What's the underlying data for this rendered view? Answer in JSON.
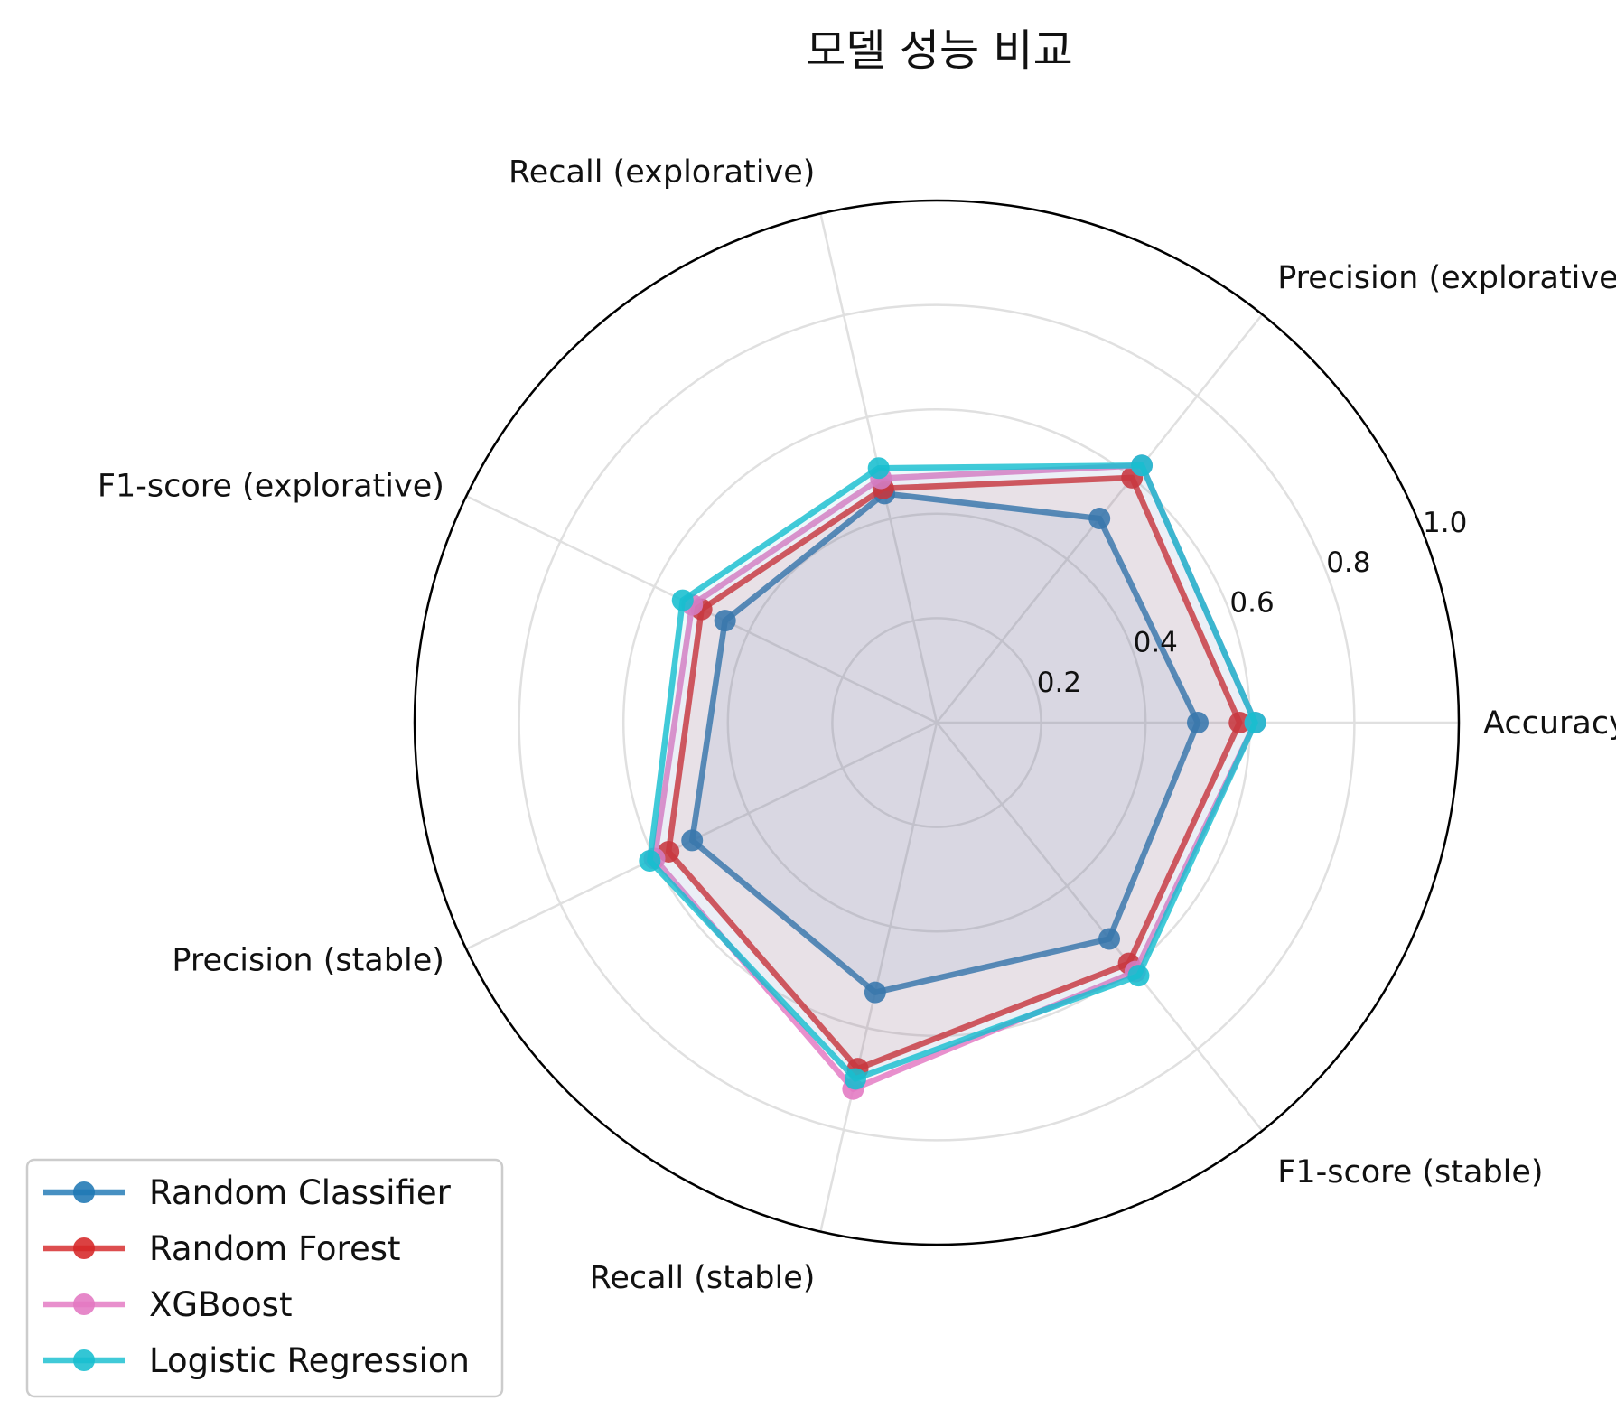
{
  "chart_data": {
    "type": "radar",
    "title": "모델 성능 비교",
    "axes": [
      "Accuracy",
      "Precision (explorative)",
      "Recall (explorative)",
      "F1-score (explorative)",
      "Precision (stable)",
      "Recall (stable)",
      "F1-score (stable)"
    ],
    "rlim": [
      0,
      1.0
    ],
    "rticks": [
      0.2,
      0.4,
      0.6,
      0.8,
      1.0
    ],
    "rtick_labels": [
      "0.2",
      "0.4",
      "0.6",
      "0.8",
      "1.0"
    ],
    "grid": true,
    "legend": "bottom-left",
    "series": [
      {
        "name": "Random Classifier",
        "color": "#1f77b4",
        "values": [
          0.5,
          0.5,
          0.45,
          0.45,
          0.52,
          0.53,
          0.53
        ]
      },
      {
        "name": "Random Forest",
        "color": "#d62728",
        "values": [
          0.58,
          0.6,
          0.46,
          0.5,
          0.57,
          0.68,
          0.59
        ]
      },
      {
        "name": "XGBoost",
        "color": "#e377c2",
        "values": [
          0.61,
          0.63,
          0.48,
          0.52,
          0.6,
          0.72,
          0.61
        ]
      },
      {
        "name": "Logistic Regression",
        "color": "#17becf",
        "values": [
          0.61,
          0.63,
          0.5,
          0.54,
          0.61,
          0.7,
          0.62
        ]
      }
    ]
  }
}
